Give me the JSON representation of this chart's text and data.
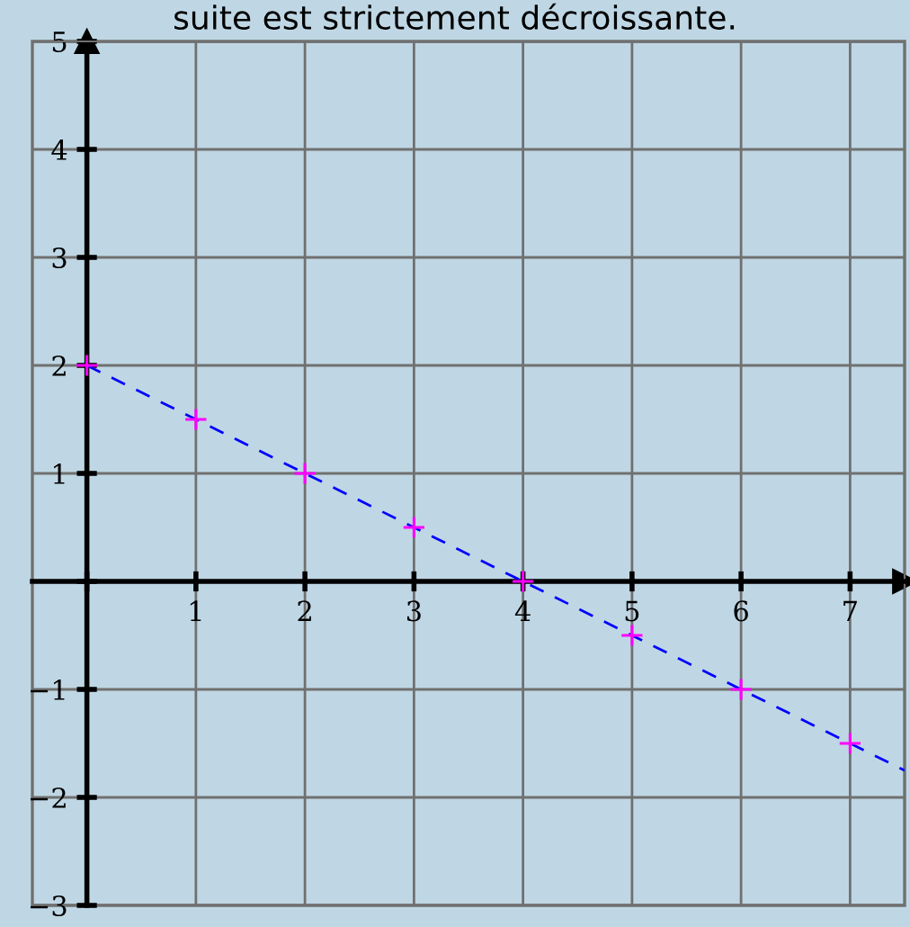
{
  "chart_data": {
    "type": "scatter",
    "title": "suite est strictement décroissante.",
    "series": [
      {
        "color": "#ff00ff",
        "marker": "cross",
        "x": [
          0,
          1,
          2,
          3,
          4,
          5,
          6,
          7
        ],
        "values": [
          2,
          1.5,
          1,
          0.5,
          0,
          -0.5,
          -1,
          -1.5
        ]
      },
      {
        "type": "line",
        "color": "#0000ff",
        "line_style": "dashed",
        "marker": "none",
        "x": [
          0,
          7.5
        ],
        "values": [
          2,
          -1.75
        ]
      }
    ],
    "xlim": [
      -0.5,
      7.5
    ],
    "ylim": [
      -3,
      5
    ],
    "xticks": [
      {
        "value": 0,
        "label": null
      },
      1,
      2,
      3,
      4,
      5,
      6,
      7
    ],
    "yticks": [
      -3,
      -2,
      -1,
      {
        "value": 0,
        "label": null
      },
      1,
      2,
      3,
      4,
      5
    ],
    "grid": true,
    "legend": false
  }
}
